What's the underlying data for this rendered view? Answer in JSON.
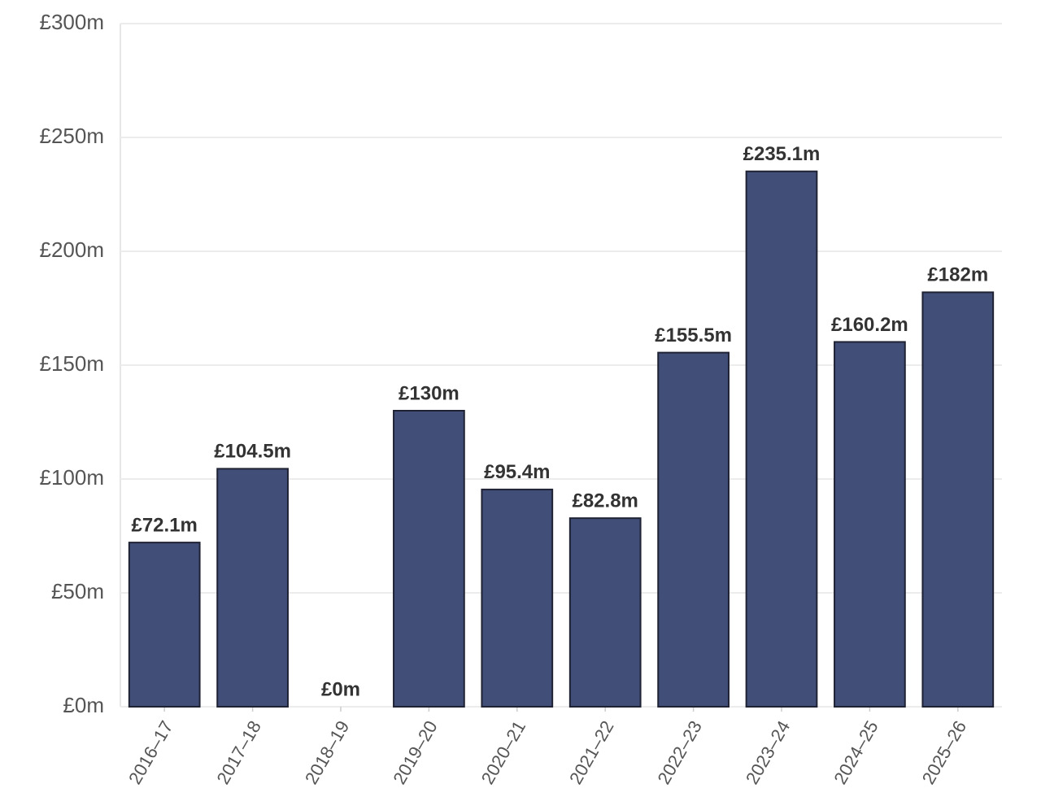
{
  "chart_data": {
    "type": "bar",
    "categories": [
      "2016–17",
      "2017–18",
      "2018–19",
      "2019–20",
      "2020–21",
      "2021–22",
      "2022–23",
      "2023–24",
      "2024–25",
      "2025–26"
    ],
    "values": [
      72.1,
      104.5,
      0,
      130,
      95.4,
      82.8,
      155.5,
      235.1,
      160.2,
      182
    ],
    "value_labels": [
      "£72.1m",
      "£104.5m",
      "£0m",
      "£130m",
      "£95.4m",
      "£82.8m",
      "£155.5m",
      "£235.1m",
      "£160.2m",
      "£182m"
    ],
    "color": "#3d4a75",
    "ylim": [
      0,
      300
    ],
    "yticks": [
      {
        "value": 0,
        "label": "£0m"
      },
      {
        "value": 50,
        "label": "£50m"
      },
      {
        "value": 100,
        "label": "£100m"
      },
      {
        "value": 150,
        "label": "£150m"
      },
      {
        "value": 200,
        "label": "£200m"
      },
      {
        "value": 250,
        "label": "£250m"
      },
      {
        "value": 300,
        "label": "£300m"
      }
    ],
    "grid": true
  }
}
